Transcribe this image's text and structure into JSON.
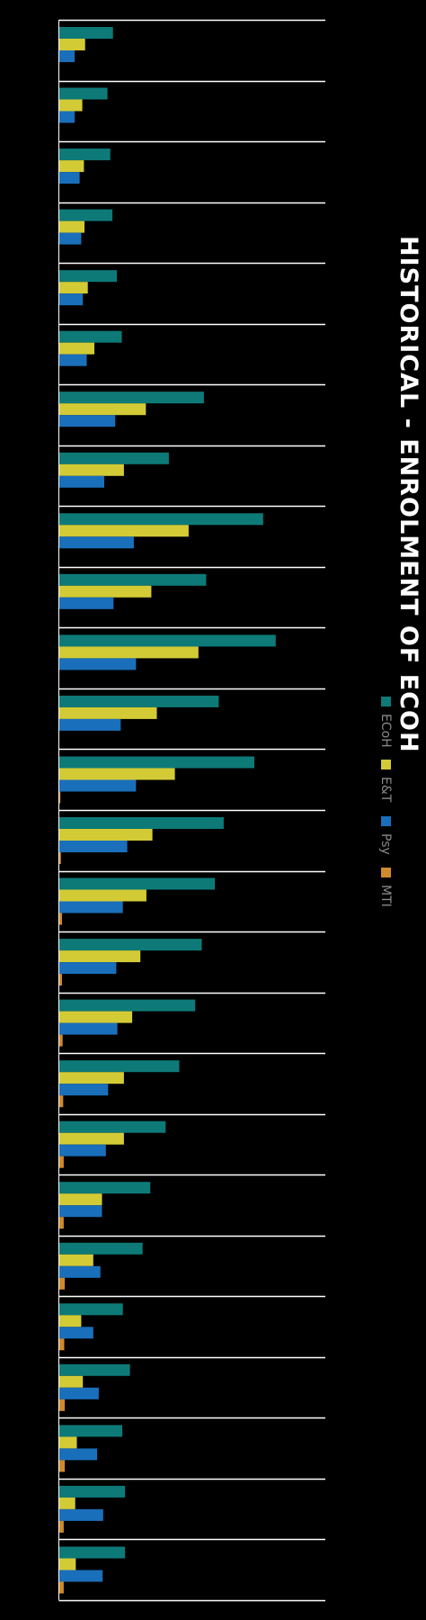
{
  "chart_data": {
    "type": "bar",
    "orientation": "horizontal",
    "title": "HISTORICAL - ENROLMENT OF ECOH",
    "xlim": [
      0,
      2350
    ],
    "grid": true,
    "legend_position": "right",
    "categories": [
      "",
      "",
      "",
      "",
      "",
      "",
      "",
      "",
      "",
      "",
      "",
      "",
      "",
      "",
      "",
      "",
      "",
      "",
      "",
      "",
      "",
      "",
      "",
      "",
      "",
      ""
    ],
    "series": [
      {
        "name": "ECoH",
        "color": "#0e7a78",
        "values": [
          490,
          440,
          465,
          485,
          525,
          570,
          1320,
          1000,
          1860,
          1340,
          1975,
          1455,
          1780,
          1500,
          1420,
          1300,
          1240,
          1095,
          970,
          830,
          760,
          580,
          645,
          575,
          600,
          600
        ]
      },
      {
        "name": "E&T",
        "color": "#d3cb36",
        "values": [
          235,
          210,
          225,
          230,
          260,
          320,
          790,
          590,
          1180,
          840,
          1270,
          890,
          1055,
          850,
          795,
          740,
          665,
          590,
          590,
          390,
          310,
          200,
          215,
          160,
          145,
          150
        ]
      },
      {
        "name": "Psy",
        "color": "#1a6fba",
        "values": [
          140,
          140,
          185,
          200,
          215,
          250,
          510,
          410,
          680,
          495,
          700,
          560,
          700,
          620,
          580,
          520,
          530,
          445,
          425,
          390,
          375,
          310,
          360,
          345,
          400,
          395
        ]
      },
      {
        "name": "MTI",
        "color": "#d08a2c",
        "values": [
          0,
          0,
          0,
          0,
          0,
          0,
          0,
          0,
          0,
          0,
          0,
          0,
          10,
          15,
          25,
          25,
          30,
          35,
          40,
          40,
          50,
          45,
          50,
          50,
          40,
          40
        ]
      }
    ]
  }
}
